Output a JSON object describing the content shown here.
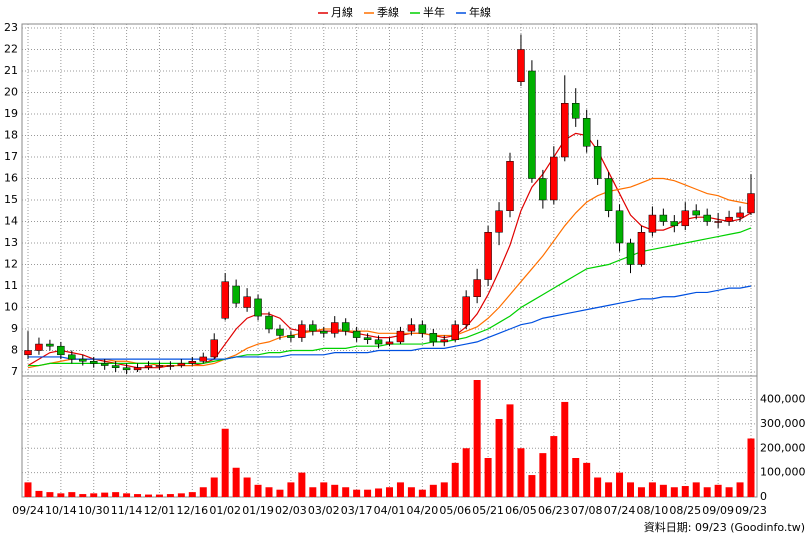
{
  "chart_data": {
    "type": "candlestick",
    "categories": [
      "09/24",
      null,
      null,
      "10/14",
      null,
      null,
      "10/30",
      null,
      null,
      "11/14",
      null,
      null,
      "12/01",
      null,
      null,
      "12/16",
      null,
      null,
      "01/02",
      null,
      null,
      "01/19",
      null,
      null,
      "02/03",
      null,
      null,
      "03/02",
      null,
      null,
      "03/17",
      null,
      null,
      "04/01",
      null,
      null,
      "04/20",
      null,
      null,
      "05/06",
      null,
      null,
      "05/21",
      null,
      null,
      "06/05",
      null,
      null,
      "06/23",
      null,
      null,
      "07/08",
      null,
      null,
      "07/24",
      null,
      null,
      "08/10",
      null,
      null,
      "08/25",
      null,
      null,
      "09/09",
      null,
      null,
      "09/23"
    ],
    "open": [
      7.8,
      8.0,
      8.3,
      8.2,
      7.8,
      7.6,
      7.5,
      7.4,
      7.3,
      7.2,
      7.1,
      7.2,
      7.3,
      7.3,
      7.3,
      7.4,
      7.5,
      7.7,
      9.5,
      11.0,
      10.0,
      10.4,
      9.6,
      9.0,
      8.7,
      8.6,
      9.2,
      8.9,
      8.8,
      9.3,
      8.9,
      8.6,
      8.5,
      8.3,
      8.4,
      8.9,
      9.2,
      8.8,
      8.4,
      8.5,
      9.2,
      10.5,
      11.3,
      13.5,
      14.5,
      20.5,
      21,
      16,
      15,
      17,
      19.5,
      18.8,
      17.5,
      16,
      14.5,
      13,
      12,
      13.5,
      14.3,
      14,
      13.8,
      14.5,
      14.3,
      14,
      14,
      14.2,
      14.4
    ],
    "high": [
      8.9,
      8.6,
      8.5,
      8.4,
      8.0,
      7.8,
      7.7,
      7.6,
      7.5,
      7.4,
      7.4,
      7.5,
      7.5,
      7.5,
      7.6,
      7.7,
      7.9,
      8.8,
      11.6,
      11.3,
      10.9,
      10.6,
      9.8,
      9.2,
      8.9,
      9.4,
      9.4,
      9.1,
      9.6,
      9.5,
      9.1,
      8.8,
      8.7,
      8.6,
      9.1,
      9.5,
      9.4,
      9.0,
      8.7,
      9.4,
      10.8,
      11.8,
      13.8,
      14.9,
      17.2,
      22.7,
      21.5,
      16.4,
      17.5,
      20.8,
      20.2,
      19.2,
      17.8,
      16.3,
      14.8,
      13.2,
      13.8,
      14.7,
      14.6,
      14.3,
      14.9,
      14.8,
      14.6,
      14.4,
      14.5,
      14.7,
      16.2
    ],
    "low": [
      7.6,
      7.8,
      8.0,
      7.6,
      7.4,
      7.3,
      7.2,
      7.1,
      7.0,
      6.9,
      7.0,
      7.1,
      7.1,
      7.1,
      7.2,
      7.3,
      7.4,
      7.6,
      9.4,
      10.0,
      9.8,
      9.4,
      8.8,
      8.5,
      8.4,
      8.4,
      8.7,
      8.6,
      8.6,
      8.7,
      8.4,
      8.3,
      8.1,
      8.2,
      8.3,
      8.7,
      8.6,
      8.2,
      8.2,
      8.4,
      9.0,
      10.2,
      11.0,
      12.9,
      14.2,
      20.3,
      15.8,
      14.6,
      14.8,
      16.8,
      18.4,
      17.2,
      15.7,
      14.2,
      12.6,
      11.6,
      11.9,
      13.3,
      13.8,
      13.5,
      13.6,
      14.1,
      13.8,
      13.7,
      13.8,
      14.0,
      14.3
    ],
    "close": [
      8.0,
      8.3,
      8.2,
      7.8,
      7.6,
      7.5,
      7.4,
      7.3,
      7.2,
      7.1,
      7.2,
      7.3,
      7.3,
      7.3,
      7.4,
      7.5,
      7.7,
      8.5,
      11.2,
      10.2,
      10.5,
      9.6,
      9.0,
      8.7,
      8.6,
      9.2,
      8.9,
      8.8,
      9.3,
      8.9,
      8.6,
      8.5,
      8.3,
      8.4,
      8.9,
      9.2,
      8.8,
      8.4,
      8.5,
      9.2,
      10.5,
      11.3,
      13.5,
      14.5,
      16.8,
      22,
      16,
      15,
      17,
      19.5,
      18.8,
      17.5,
      16,
      14.5,
      13,
      12,
      13.5,
      14.3,
      14,
      13.8,
      14.5,
      14.3,
      14,
      14,
      14.2,
      14.4,
      15.3
    ],
    "up_color": "#ff0000",
    "down_color": "#00b000",
    "series": [
      {
        "name": "月線",
        "color": "#e00000",
        "values": [
          7.3,
          7.6,
          7.9,
          8.0,
          7.9,
          7.8,
          7.6,
          7.5,
          7.4,
          7.3,
          7.2,
          7.2,
          7.2,
          7.3,
          7.3,
          7.3,
          7.4,
          7.6,
          8.3,
          9.0,
          9.5,
          9.7,
          9.7,
          9.5,
          9.0,
          8.9,
          8.9,
          8.9,
          8.9,
          8.9,
          8.8,
          8.7,
          8.6,
          8.6,
          8.7,
          8.8,
          8.8,
          8.7,
          8.6,
          8.7,
          9.1,
          9.7,
          10.6,
          11.7,
          12.9,
          14.5,
          15.6,
          16.2,
          17.0,
          17.8,
          18.1,
          18.0,
          17.3,
          16.3,
          15.3,
          14.3,
          13.8,
          13.6,
          13.6,
          13.8,
          14.1,
          14.2,
          14.2,
          14.1,
          14.0,
          14.1,
          14.4
        ]
      },
      {
        "name": "季線",
        "color": "#ff7000",
        "values": [
          7.2,
          7.3,
          7.4,
          7.5,
          7.6,
          7.6,
          7.6,
          7.6,
          7.5,
          7.5,
          7.4,
          7.4,
          7.3,
          7.3,
          7.3,
          7.3,
          7.3,
          7.4,
          7.6,
          7.8,
          8.1,
          8.3,
          8.4,
          8.6,
          8.7,
          8.8,
          8.9,
          9.0,
          9.0,
          8.9,
          8.9,
          8.9,
          8.8,
          8.8,
          8.8,
          8.8,
          8.8,
          8.7,
          8.7,
          8.7,
          8.9,
          9.1,
          9.5,
          10.0,
          10.6,
          11.2,
          11.8,
          12.4,
          13.1,
          13.8,
          14.4,
          14.9,
          15.2,
          15.4,
          15.5,
          15.6,
          15.8,
          16.0,
          16.0,
          15.9,
          15.7,
          15.5,
          15.3,
          15.2,
          15.0,
          14.9,
          14.8
        ]
      },
      {
        "name": "半年",
        "color": "#00d000",
        "values": [
          7.3,
          7.3,
          7.4,
          7.4,
          7.4,
          7.4,
          7.4,
          7.4,
          7.4,
          7.4,
          7.4,
          7.4,
          7.4,
          7.4,
          7.4,
          7.4,
          7.4,
          7.5,
          7.6,
          7.7,
          7.8,
          7.8,
          7.9,
          7.9,
          8.0,
          8.0,
          8.0,
          8.1,
          8.1,
          8.1,
          8.2,
          8.2,
          8.2,
          8.3,
          8.3,
          8.3,
          8.3,
          8.4,
          8.4,
          8.5,
          8.6,
          8.8,
          9.0,
          9.3,
          9.6,
          10.0,
          10.3,
          10.6,
          10.9,
          11.2,
          11.5,
          11.8,
          11.9,
          12.0,
          12.2,
          12.4,
          12.6,
          12.7,
          12.8,
          12.9,
          13.0,
          13.1,
          13.2,
          13.3,
          13.4,
          13.5,
          13.7
        ]
      },
      {
        "name": "年線",
        "color": "#0050e0",
        "values": [
          7.7,
          7.7,
          7.7,
          7.7,
          7.6,
          7.6,
          7.6,
          7.6,
          7.6,
          7.6,
          7.6,
          7.6,
          7.6,
          7.6,
          7.6,
          7.6,
          7.6,
          7.6,
          7.6,
          7.7,
          7.7,
          7.7,
          7.7,
          7.7,
          7.8,
          7.8,
          7.8,
          7.8,
          7.9,
          7.9,
          7.9,
          7.9,
          8.0,
          8.0,
          8.0,
          8.0,
          8.1,
          8.1,
          8.1,
          8.2,
          8.3,
          8.4,
          8.6,
          8.8,
          9.0,
          9.2,
          9.3,
          9.5,
          9.6,
          9.7,
          9.8,
          9.9,
          10.0,
          10.1,
          10.2,
          10.3,
          10.4,
          10.4,
          10.5,
          10.5,
          10.6,
          10.7,
          10.7,
          10.8,
          10.9,
          10.9,
          11.0
        ]
      }
    ],
    "ylim": [
      7,
      23
    ],
    "yticks": [
      7,
      8,
      9,
      10,
      11,
      12,
      13,
      14,
      15,
      16,
      17,
      18,
      19,
      20,
      21,
      22,
      23
    ],
    "volume": {
      "color": "#ff0000",
      "values": [
        60000,
        25000,
        20000,
        15000,
        20000,
        12000,
        15000,
        18000,
        20000,
        15000,
        12000,
        10000,
        10000,
        12000,
        15000,
        20000,
        40000,
        80000,
        280000,
        120000,
        80000,
        50000,
        40000,
        30000,
        60000,
        100000,
        40000,
        60000,
        50000,
        40000,
        30000,
        30000,
        35000,
        40000,
        60000,
        40000,
        30000,
        50000,
        60000,
        140000,
        200000,
        480000,
        160000,
        320000,
        380000,
        200000,
        90000,
        180000,
        250000,
        390000,
        160000,
        140000,
        80000,
        60000,
        100000,
        60000,
        40000,
        60000,
        50000,
        40000,
        45000,
        60000,
        40000,
        50000,
        40000,
        60000,
        240000
      ]
    },
    "y2lim": [
      0,
      480000
    ],
    "y2ticks": [
      0,
      {
        "value": 100000,
        "label": "100,000"
      },
      {
        "value": 200000,
        "label": "200,000"
      },
      {
        "value": 300000,
        "label": "300,000"
      },
      {
        "value": 400000,
        "label": "400,000"
      }
    ],
    "grid": true,
    "footer": "資料日期: 09/23 (Goodinfo.tw)"
  }
}
